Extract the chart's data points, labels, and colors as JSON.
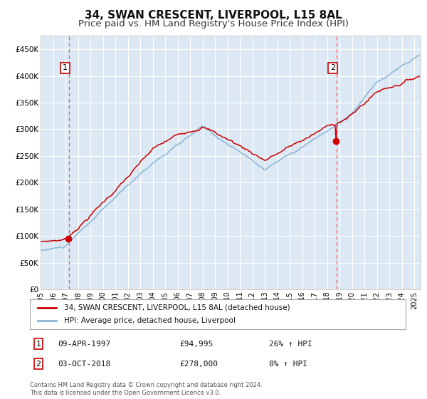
{
  "title": "34, SWAN CRESCENT, LIVERPOOL, L15 8AL",
  "subtitle": "Price paid vs. HM Land Registry's House Price Index (HPI)",
  "title_fontsize": 11,
  "subtitle_fontsize": 9.5,
  "bg_color": "#dce9f5",
  "plot_bg_color": "#dce9f5",
  "fig_bg_color": "#ffffff",
  "grid_color": "#ffffff",
  "hpi_color": "#8ab4d4",
  "price_color": "#cc0000",
  "marker_color": "#cc0000",
  "vline_color": "#ff5555",
  "ylim": [
    0,
    475000
  ],
  "yticks": [
    0,
    50000,
    100000,
    150000,
    200000,
    250000,
    300000,
    350000,
    400000,
    450000
  ],
  "sale1_date_num": 1997.27,
  "sale1_price": 94995,
  "sale1_label": "1",
  "sale1_date_str": "09-APR-1997",
  "sale1_price_str": "£94,995",
  "sale1_hpi_str": "26% ↑ HPI",
  "sale2_date_num": 2018.75,
  "sale2_price": 278000,
  "sale2_label": "2",
  "sale2_date_str": "03-OCT-2018",
  "sale2_price_str": "£278,000",
  "sale2_hpi_str": "8% ↑ HPI",
  "legend_label_price": "34, SWAN CRESCENT, LIVERPOOL, L15 8AL (detached house)",
  "legend_label_hpi": "HPI: Average price, detached house, Liverpool",
  "footnote": "Contains HM Land Registry data © Crown copyright and database right 2024.\nThis data is licensed under the Open Government Licence v3.0.",
  "xmin": 1995.0,
  "xmax": 2025.5
}
